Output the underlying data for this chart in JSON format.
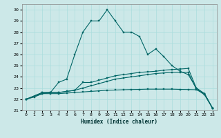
{
  "xlabel": "Humidex (Indice chaleur)",
  "bg_color": "#cce8e8",
  "grid_color": "#aadddd",
  "line_color": "#006666",
  "xlim": [
    -0.5,
    23.5
  ],
  "ylim": [
    21,
    30.5
  ],
  "xticks": [
    0,
    1,
    2,
    3,
    4,
    5,
    6,
    7,
    8,
    9,
    10,
    11,
    12,
    13,
    14,
    15,
    16,
    17,
    18,
    19,
    20,
    21,
    22,
    23
  ],
  "yticks": [
    21,
    22,
    23,
    24,
    25,
    26,
    27,
    28,
    29,
    30
  ],
  "line1_x": [
    0,
    1,
    2,
    3,
    4,
    5,
    6,
    7,
    8,
    9,
    10,
    11,
    12,
    13,
    14,
    15,
    16,
    17,
    18,
    19,
    20,
    21,
    22,
    23
  ],
  "line1_y": [
    22.0,
    22.2,
    22.5,
    22.6,
    23.5,
    23.8,
    26.0,
    28.0,
    29.0,
    29.0,
    30.0,
    29.0,
    28.0,
    28.0,
    27.6,
    26.0,
    26.5,
    25.8,
    25.0,
    24.5,
    24.2,
    23.0,
    22.5,
    21.2
  ],
  "line2_x": [
    0,
    2,
    3,
    4,
    5,
    6,
    7,
    8,
    9,
    10,
    11,
    12,
    13,
    14,
    15,
    16,
    17,
    18,
    19,
    20,
    21,
    22,
    23
  ],
  "line2_y": [
    22.0,
    22.6,
    22.6,
    22.6,
    22.7,
    22.8,
    23.5,
    23.5,
    23.7,
    23.9,
    24.1,
    24.2,
    24.3,
    24.4,
    24.45,
    24.5,
    24.6,
    24.65,
    24.7,
    24.75,
    23.0,
    22.5,
    21.2
  ],
  "line3_x": [
    0,
    2,
    3,
    4,
    5,
    6,
    7,
    8,
    9,
    10,
    11,
    12,
    13,
    14,
    15,
    16,
    17,
    18,
    19,
    20,
    21,
    22,
    23
  ],
  "line3_y": [
    22.0,
    22.6,
    22.6,
    22.6,
    22.7,
    22.8,
    23.0,
    23.2,
    23.4,
    23.6,
    23.8,
    23.9,
    24.0,
    24.1,
    24.2,
    24.3,
    24.35,
    24.4,
    24.4,
    24.4,
    22.9,
    22.4,
    21.2
  ],
  "line4_x": [
    0,
    2,
    3,
    4,
    5,
    6,
    7,
    8,
    9,
    10,
    11,
    12,
    13,
    14,
    15,
    16,
    17,
    18,
    19,
    20,
    21,
    22,
    23
  ],
  "line4_y": [
    22.0,
    22.5,
    22.5,
    22.5,
    22.55,
    22.6,
    22.65,
    22.7,
    22.75,
    22.8,
    22.82,
    22.85,
    22.87,
    22.88,
    22.9,
    22.9,
    22.9,
    22.9,
    22.88,
    22.87,
    22.85,
    22.5,
    21.2
  ]
}
